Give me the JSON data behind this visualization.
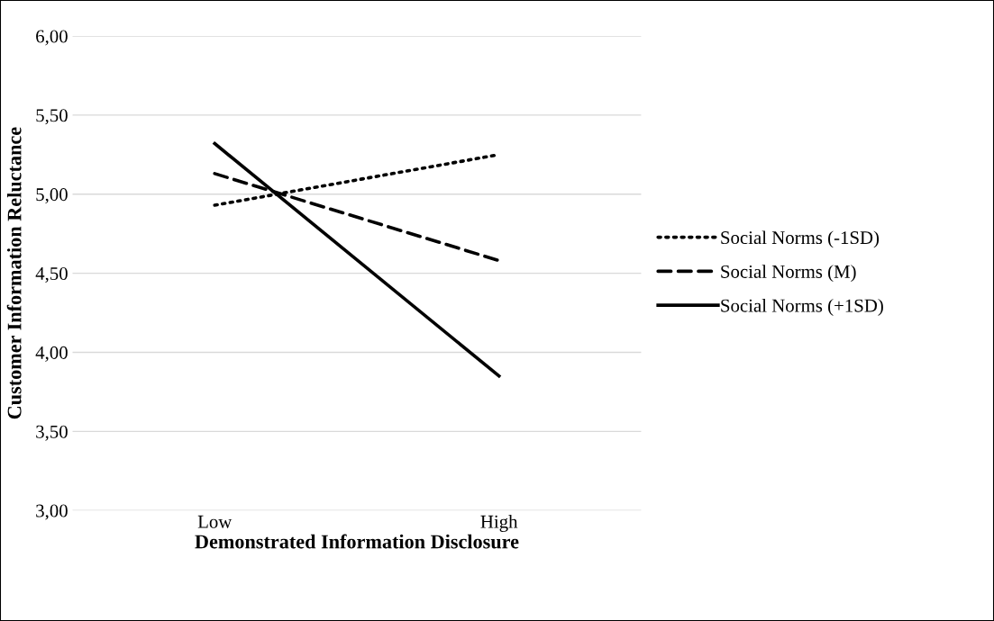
{
  "chart_data": {
    "type": "line",
    "xlabel": "Demonstrated Information Disclosure",
    "ylabel": "Customer Information Reluctance",
    "categories": [
      "Low",
      "High"
    ],
    "series": [
      {
        "name": "Social Norms (-1SD)",
        "color": "#000000",
        "line_style": "dotted",
        "values": [
          4.93,
          5.25
        ]
      },
      {
        "name": "Social Norms (M)",
        "color": "#000000",
        "line_style": "dashed",
        "values": [
          5.13,
          4.58
        ]
      },
      {
        "name": "Social Norms (+1SD)",
        "color": "#000000",
        "line_style": "solid",
        "values": [
          5.32,
          3.85
        ]
      }
    ],
    "ylim": [
      3,
      6
    ],
    "yticks": [
      {
        "value": 3,
        "label": "3,00"
      },
      {
        "value": 3.5,
        "label": "3,50"
      },
      {
        "value": 4,
        "label": "4,00"
      },
      {
        "value": 4.5,
        "label": "4,50"
      },
      {
        "value": 5,
        "label": "5,00"
      },
      {
        "value": 5.5,
        "label": "5,50"
      },
      {
        "value": 6,
        "label": "6,00"
      }
    ],
    "grid": "y",
    "legend": "right",
    "marker": "none"
  }
}
